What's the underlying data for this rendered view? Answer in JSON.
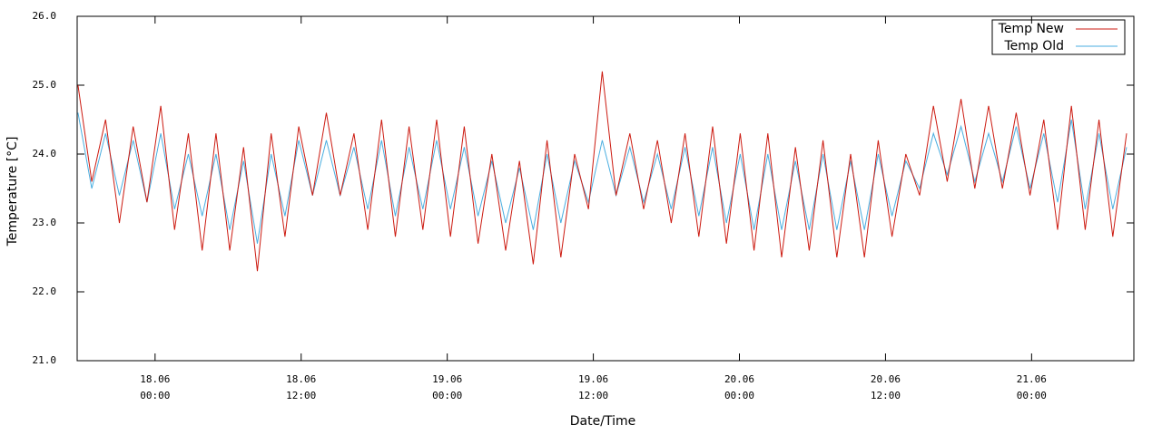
{
  "chart_data": {
    "type": "line",
    "xlabel": "Date/Time",
    "ylabel": "Temperature [°C]",
    "xlim": [
      "17.06 17:36",
      "21.06 08:24"
    ],
    "xticks": [
      {
        "value": "18.06 00:00",
        "label": [
          "18.06",
          "00:00"
        ]
      },
      {
        "value": "18.06 12:00",
        "label": [
          "18.06",
          "12:00"
        ]
      },
      {
        "value": "19.06 00:00",
        "label": [
          "19.06",
          "00:00"
        ]
      },
      {
        "value": "19.06 12:00",
        "label": [
          "19.06",
          "12:00"
        ]
      },
      {
        "value": "20.06 00:00",
        "label": [
          "20.06",
          "00:00"
        ]
      },
      {
        "value": "20.06 12:00",
        "label": [
          "20.06",
          "12:00"
        ]
      },
      {
        "value": "21.06 00:00",
        "label": [
          "21.06",
          "00:00"
        ]
      }
    ],
    "ylim": [
      21,
      26
    ],
    "yticks": [
      {
        "value": 21,
        "label": "21.0"
      },
      {
        "value": 22,
        "label": "22.0"
      },
      {
        "value": 23,
        "label": "23.0"
      },
      {
        "value": 24,
        "label": "24.0"
      },
      {
        "value": 25,
        "label": "25.0"
      },
      {
        "value": 26,
        "label": "26.0"
      }
    ],
    "grid": false,
    "legend": "upper right",
    "x": [
      "17.06 17:40",
      "17.06 18:48",
      "17.06 19:56",
      "17.06 21:04",
      "17.06 22:12",
      "17.06 23:20",
      "18.06 00:28",
      "18.06 01:36",
      "18.06 02:44",
      "18.06 03:52",
      "18.06 05:00",
      "18.06 06:08",
      "18.06 07:16",
      "18.06 08:24",
      "18.06 09:32",
      "18.06 10:40",
      "18.06 11:48",
      "18.06 12:56",
      "18.06 14:04",
      "18.06 15:12",
      "18.06 16:20",
      "18.06 17:28",
      "18.06 18:36",
      "18.06 19:44",
      "18.06 20:52",
      "18.06 22:00",
      "18.06 23:08",
      "19.06 00:16",
      "19.06 01:24",
      "19.06 02:32",
      "19.06 03:40",
      "19.06 04:48",
      "19.06 05:56",
      "19.06 07:04",
      "19.06 08:12",
      "19.06 09:20",
      "19.06 10:28",
      "19.06 11:36",
      "19.06 12:44",
      "19.06 13:52",
      "19.06 15:00",
      "19.06 16:08",
      "19.06 17:16",
      "19.06 18:24",
      "19.06 19:32",
      "19.06 20:40",
      "19.06 21:48",
      "19.06 22:56",
      "20.06 00:04",
      "20.06 01:12",
      "20.06 02:20",
      "20.06 03:28",
      "20.06 04:36",
      "20.06 05:44",
      "20.06 06:52",
      "20.06 08:00",
      "20.06 09:08",
      "20.06 10:16",
      "20.06 11:24",
      "20.06 12:32",
      "20.06 13:40",
      "20.06 14:48",
      "20.06 15:56",
      "20.06 17:04",
      "20.06 18:12",
      "20.06 19:20",
      "20.06 20:28",
      "20.06 21:36",
      "20.06 22:44",
      "20.06 23:52",
      "21.06 01:00",
      "21.06 02:08",
      "21.06 03:16",
      "21.06 04:24",
      "21.06 05:32",
      "21.06 06:40",
      "21.06 07:48"
    ],
    "series": [
      {
        "name": "Temp New",
        "color": "#cc1a10",
        "values": [
          25.0,
          23.6,
          24.5,
          23.0,
          24.4,
          23.3,
          24.7,
          22.9,
          24.3,
          22.6,
          24.3,
          22.6,
          24.1,
          22.3,
          24.3,
          22.8,
          24.4,
          23.4,
          24.6,
          23.4,
          24.3,
          22.9,
          24.5,
          22.8,
          24.4,
          22.9,
          24.5,
          22.8,
          24.4,
          22.7,
          24.0,
          22.6,
          23.9,
          22.4,
          24.2,
          22.5,
          24.0,
          23.2,
          25.2,
          23.4,
          24.3,
          23.2,
          24.2,
          23.0,
          24.3,
          22.8,
          24.4,
          22.7,
          24.3,
          22.6,
          24.3,
          22.5,
          24.1,
          22.6,
          24.2,
          22.5,
          24.0,
          22.5,
          24.2,
          22.8,
          24.0,
          23.4,
          24.7,
          23.6,
          24.8,
          23.5,
          24.7,
          23.5,
          24.6,
          23.4,
          24.5,
          22.9,
          24.7,
          22.9,
          24.5,
          22.8,
          24.3
        ]
      },
      {
        "name": "Temp Old",
        "color": "#4aaee0",
        "values": [
          24.6,
          23.5,
          24.3,
          23.4,
          24.2,
          23.3,
          24.3,
          23.2,
          24.0,
          23.1,
          24.0,
          22.9,
          23.9,
          22.7,
          24.0,
          23.1,
          24.2,
          23.4,
          24.2,
          23.4,
          24.1,
          23.2,
          24.2,
          23.1,
          24.1,
          23.2,
          24.2,
          23.2,
          24.1,
          23.1,
          23.9,
          23.0,
          23.8,
          22.9,
          24.0,
          23.0,
          23.9,
          23.3,
          24.2,
          23.4,
          24.1,
          23.3,
          24.0,
          23.2,
          24.1,
          23.1,
          24.1,
          23.0,
          24.0,
          22.9,
          24.0,
          22.9,
          23.9,
          22.9,
          24.0,
          22.9,
          23.9,
          22.9,
          24.0,
          23.1,
          23.9,
          23.5,
          24.3,
          23.7,
          24.4,
          23.6,
          24.3,
          23.6,
          24.4,
          23.5,
          24.3,
          23.3,
          24.5,
          23.2,
          24.3,
          23.2,
          24.1
        ]
      }
    ]
  }
}
